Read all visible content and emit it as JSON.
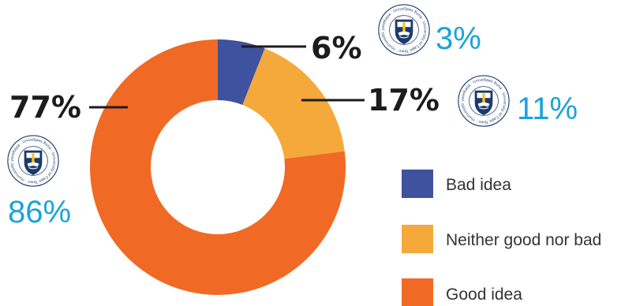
{
  "chart_data": {
    "type": "pie",
    "donut": true,
    "categories": [
      "Bad idea",
      "Neither good nor bad",
      "Good idea"
    ],
    "series": [
      {
        "values": [
          6,
          17,
          77
        ],
        "labels": [
          "6%",
          "17%",
          "77%"
        ]
      },
      {
        "values": [
          3,
          11,
          86
        ],
        "labels": [
          "3%",
          "11%",
          "86%"
        ]
      }
    ],
    "colors": [
      "#3f52a0",
      "#f5a93a",
      "#f06a25"
    ],
    "annotation_color": "#1aa3d9",
    "legend_position": "right",
    "seal_text": "Spes Bona · University of Cape Town · iYunivesithi yaseKapa · Universiteit van Kaapstad ·"
  }
}
